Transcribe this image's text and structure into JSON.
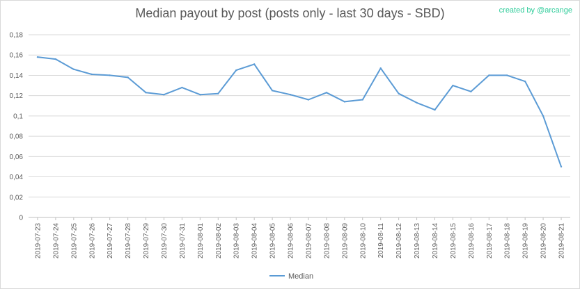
{
  "chart_data": {
    "type": "line",
    "title": "Median payout by post (posts only - last 30 days - SBD)",
    "credit": "created by @arcange",
    "ylim": [
      0,
      0.18
    ],
    "y_ticks": [
      "0",
      "0,02",
      "0,04",
      "0,06",
      "0,08",
      "0,1",
      "0,12",
      "0,14",
      "0,16",
      "0,18"
    ],
    "grid": "horizontal",
    "legend_position": "bottom",
    "categories": [
      "2019-07-23",
      "2019-07-24",
      "2019-07-25",
      "2019-07-26",
      "2019-07-27",
      "2019-07-28",
      "2019-07-29",
      "2019-07-30",
      "2019-07-31",
      "2019-08-01",
      "2019-08-02",
      "2019-08-03",
      "2019-08-04",
      "2019-08-05",
      "2019-08-06",
      "2019-08-07",
      "2019-08-08",
      "2019-08-09",
      "2019-08-10",
      "2019-08-11",
      "2019-08-12",
      "2019-08-13",
      "2019-08-14",
      "2019-08-15",
      "2019-08-16",
      "2019-08-17",
      "2019-08-18",
      "2019-08-19",
      "2019-08-20",
      "2019-08-21"
    ],
    "series": [
      {
        "name": "Median",
        "color": "#5b9bd5",
        "values": [
          0.158,
          0.156,
          0.146,
          0.141,
          0.14,
          0.138,
          0.123,
          0.121,
          0.128,
          0.121,
          0.122,
          0.145,
          0.151,
          0.125,
          0.121,
          0.116,
          0.123,
          0.114,
          0.116,
          0.147,
          0.122,
          0.113,
          0.106,
          0.13,
          0.124,
          0.14,
          0.14,
          0.134,
          0.1,
          0.05
        ]
      }
    ]
  }
}
